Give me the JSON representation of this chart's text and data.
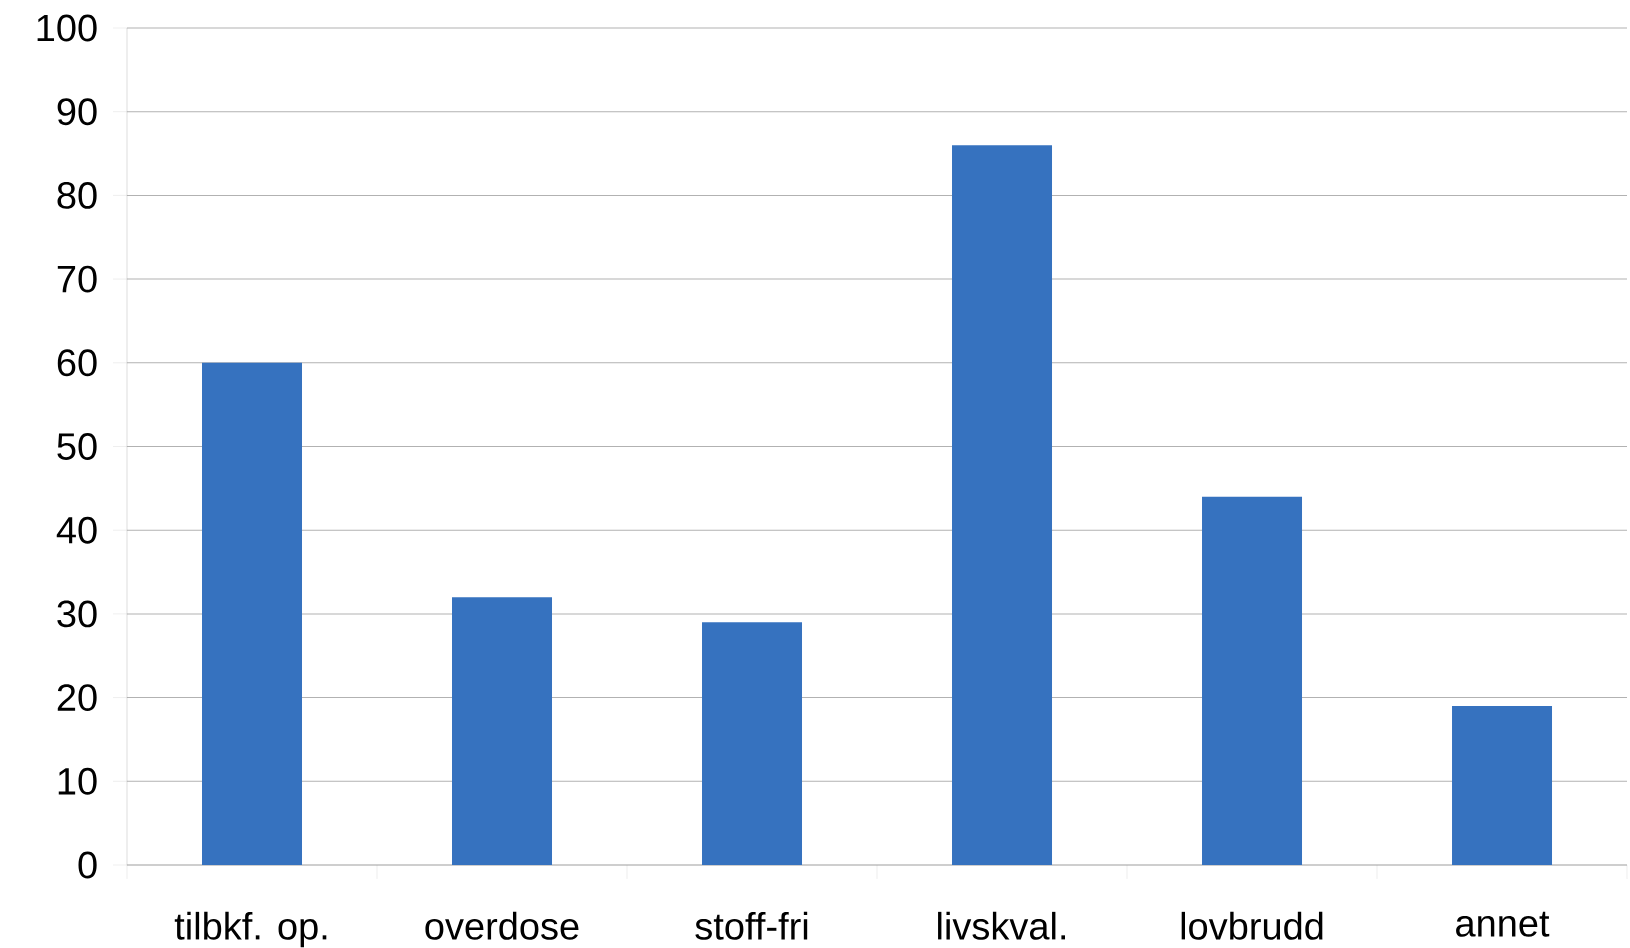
{
  "chart_data": {
    "type": "bar",
    "categories": [
      "tilbkf. op.",
      "overdose",
      "stoff-fri",
      "livskval.",
      "lovbrudd",
      "annet"
    ],
    "values": [
      60,
      32,
      29,
      86,
      44,
      19
    ],
    "color": "#3672bf",
    "ylim": [
      0,
      100
    ],
    "yticks": [
      0,
      10,
      20,
      30,
      40,
      50,
      60,
      70,
      80,
      90,
      100
    ],
    "grid": "y"
  }
}
